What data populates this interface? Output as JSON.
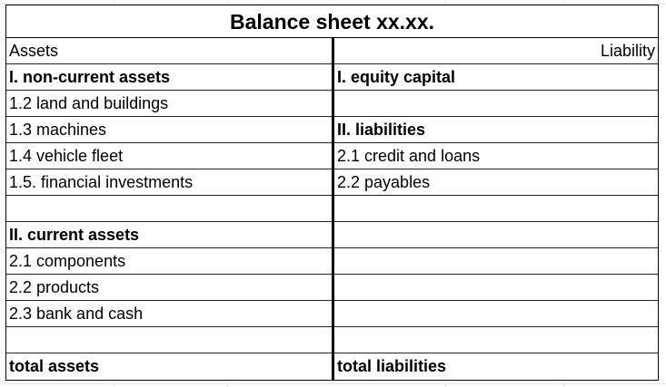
{
  "title": "Balance sheet xx.xx.",
  "header": {
    "left": "Assets",
    "right": "Liability"
  },
  "rows": [
    {
      "left": "I. non-current assets",
      "left_bold": true,
      "right": "I. equity capital",
      "right_bold": true
    },
    {
      "left": "1.2 land and buildings",
      "right": ""
    },
    {
      "left": "1.3 machines",
      "right": "II. liabilities",
      "right_bold": true
    },
    {
      "left": "1.4 vehicle fleet",
      "right": "2.1 credit and loans"
    },
    {
      "left": "1.5. financial investments",
      "right": "2.2 payables"
    },
    {
      "left": "",
      "right": ""
    },
    {
      "left": "II. current assets",
      "left_bold": true,
      "right": ""
    },
    {
      "left": "2.1 components",
      "right": ""
    },
    {
      "left": "2.2 products",
      "right": ""
    },
    {
      "left": "2.3 bank and cash",
      "right": ""
    },
    {
      "left": "",
      "right": ""
    },
    {
      "left": "total assets",
      "left_bold": true,
      "right": "total liabilities",
      "right_bold": true
    }
  ]
}
